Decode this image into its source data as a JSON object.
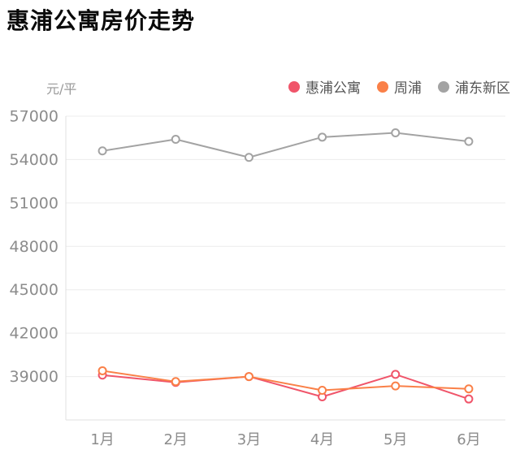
{
  "chart_data": {
    "type": "line",
    "title": "惠浦公寓房价走势",
    "unit": "元/平",
    "categories": [
      "1月",
      "2月",
      "3月",
      "4月",
      "5月",
      "6月"
    ],
    "series": [
      {
        "name": "惠浦公寓",
        "color": "#f0556a",
        "values": [
          39100,
          38600,
          39000,
          37600,
          39150,
          37450
        ]
      },
      {
        "name": "周浦",
        "color": "#fa8048",
        "values": [
          39400,
          38650,
          39000,
          38050,
          38350,
          38150
        ]
      },
      {
        "name": "浦东新区",
        "color": "#a3a3a3",
        "values": [
          54600,
          55400,
          54150,
          55550,
          55850,
          55250
        ]
      }
    ],
    "ylim": [
      36000,
      57000
    ],
    "ytick_step": 3000,
    "ytick_labels": [
      "39000",
      "42000",
      "45000",
      "48000",
      "51000",
      "54000",
      "57000"
    ],
    "grid": true,
    "legend_position": "top-right",
    "colors": {
      "gridline": "#ececec",
      "axis_line": "#e0e0e0",
      "tick_label": "#8c8c8c",
      "marker_fill": "#ffffff"
    }
  }
}
